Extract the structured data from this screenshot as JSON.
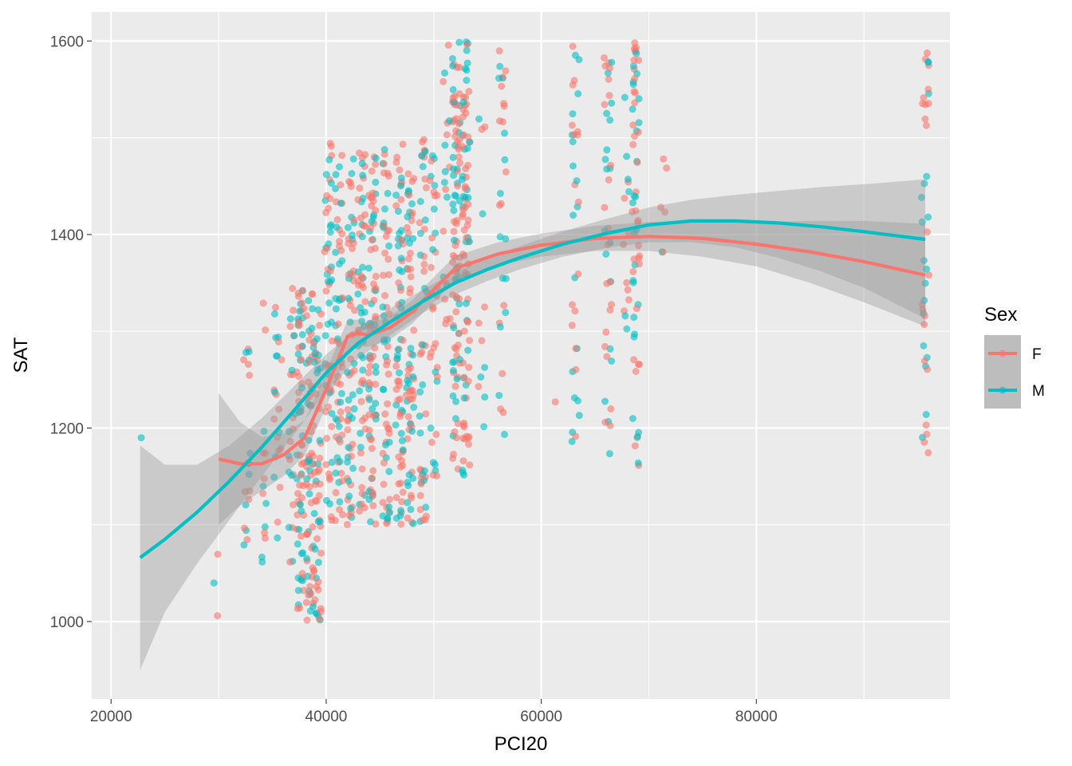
{
  "chart_data": {
    "type": "scatter",
    "title": "",
    "xlabel": "PCI20",
    "ylabel": "SAT",
    "xlim": [
      18200,
      98000
    ],
    "ylim": [
      920,
      1630
    ],
    "x_ticks": [
      20000,
      40000,
      60000,
      80000
    ],
    "y_ticks": [
      1000,
      1200,
      1400,
      1600
    ],
    "x_tick_labels": [
      "20000",
      "40000",
      "60000",
      "80000"
    ],
    "y_tick_labels": [
      "1000",
      "1200",
      "1400",
      "1600"
    ],
    "grid": true,
    "legend": {
      "title": "Sex",
      "position": "right",
      "entries": [
        "F",
        "M"
      ]
    },
    "colors": {
      "F": "#F8766D",
      "M": "#00BFC4",
      "panel": "#EBEBEB",
      "band": "#999999"
    },
    "point_clusters": [
      {
        "x": 22700,
        "n_F": 0,
        "n_M": 1,
        "ymin": 1190,
        "ymax": 1192
      },
      {
        "x": 29800,
        "n_F": 2,
        "n_M": 1,
        "ymin": 978,
        "ymax": 1070
      },
      {
        "x": 32600,
        "n_F": 10,
        "n_M": 8,
        "ymin": 1030,
        "ymax": 1315
      },
      {
        "x": 34200,
        "n_F": 8,
        "n_M": 6,
        "ymin": 1060,
        "ymax": 1345
      },
      {
        "x": 35500,
        "n_F": 12,
        "n_M": 10,
        "ymin": 1005,
        "ymax": 1340
      },
      {
        "x": 36800,
        "n_F": 14,
        "n_M": 10,
        "ymin": 1060,
        "ymax": 1345
      },
      {
        "x": 37600,
        "n_F": 40,
        "n_M": 28,
        "ymin": 1003,
        "ymax": 1345
      },
      {
        "x": 38500,
        "n_F": 40,
        "n_M": 28,
        "ymin": 1000,
        "ymax": 1345
      },
      {
        "x": 39200,
        "n_F": 30,
        "n_M": 22,
        "ymin": 1000,
        "ymax": 1330
      },
      {
        "x": 40200,
        "n_F": 30,
        "n_M": 26,
        "ymin": 1100,
        "ymax": 1495
      },
      {
        "x": 41200,
        "n_F": 32,
        "n_M": 26,
        "ymin": 1100,
        "ymax": 1495
      },
      {
        "x": 42300,
        "n_F": 34,
        "n_M": 26,
        "ymin": 1100,
        "ymax": 1495
      },
      {
        "x": 43300,
        "n_F": 34,
        "n_M": 26,
        "ymin": 1100,
        "ymax": 1495
      },
      {
        "x": 44300,
        "n_F": 50,
        "n_M": 30,
        "ymin": 1100,
        "ymax": 1495
      },
      {
        "x": 45600,
        "n_F": 36,
        "n_M": 26,
        "ymin": 1100,
        "ymax": 1495
      },
      {
        "x": 46800,
        "n_F": 40,
        "n_M": 30,
        "ymin": 1100,
        "ymax": 1495
      },
      {
        "x": 47800,
        "n_F": 40,
        "n_M": 28,
        "ymin": 1100,
        "ymax": 1495
      },
      {
        "x": 49000,
        "n_F": 28,
        "n_M": 20,
        "ymin": 1100,
        "ymax": 1500
      },
      {
        "x": 50000,
        "n_F": 22,
        "n_M": 14,
        "ymin": 1150,
        "ymax": 1500
      },
      {
        "x": 51200,
        "n_F": 12,
        "n_M": 8,
        "ymin": 1300,
        "ymax": 1600
      },
      {
        "x": 52100,
        "n_F": 60,
        "n_M": 36,
        "ymin": 1150,
        "ymax": 1600
      },
      {
        "x": 53000,
        "n_F": 55,
        "n_M": 32,
        "ymin": 1150,
        "ymax": 1600
      },
      {
        "x": 54500,
        "n_F": 6,
        "n_M": 6,
        "ymin": 1180,
        "ymax": 1525
      },
      {
        "x": 56400,
        "n_F": 16,
        "n_M": 14,
        "ymin": 1170,
        "ymax": 1590
      },
      {
        "x": 61200,
        "n_F": 1,
        "n_M": 0,
        "ymin": 1227,
        "ymax": 1227
      },
      {
        "x": 63200,
        "n_F": 16,
        "n_M": 18,
        "ymin": 1158,
        "ymax": 1600
      },
      {
        "x": 66200,
        "n_F": 22,
        "n_M": 18,
        "ymin": 1170,
        "ymax": 1592
      },
      {
        "x": 67800,
        "n_F": 8,
        "n_M": 6,
        "ymin": 1280,
        "ymax": 1598
      },
      {
        "x": 68800,
        "n_F": 36,
        "n_M": 26,
        "ymin": 1150,
        "ymax": 1600
      },
      {
        "x": 71400,
        "n_F": 5,
        "n_M": 1,
        "ymin": 1235,
        "ymax": 1525
      },
      {
        "x": 95700,
        "n_F": 22,
        "n_M": 18,
        "ymin": 1158,
        "ymax": 1597
      }
    ],
    "series": [
      {
        "name": "F",
        "smooth_x": [
          30000,
          32000,
          34000,
          36000,
          38000,
          40000,
          42000,
          43000,
          44000,
          46000,
          48000,
          50000,
          52000,
          56000,
          60000,
          65000,
          70000,
          75000,
          80000,
          85000,
          90000,
          95700
        ],
        "smooth_y": [
          1168,
          1163,
          1163,
          1172,
          1190,
          1240,
          1295,
          1298,
          1296,
          1304,
          1320,
          1343,
          1365,
          1380,
          1389,
          1396,
          1398,
          1396,
          1390,
          1382,
          1372,
          1358
        ],
        "band_lo": [
          1100,
          1120,
          1135,
          1150,
          1172,
          1222,
          1278,
          1284,
          1284,
          1292,
          1308,
          1330,
          1352,
          1368,
          1377,
          1383,
          1383,
          1377,
          1367,
          1350,
          1330,
          1305
        ],
        "band_hi": [
          1236,
          1206,
          1191,
          1194,
          1208,
          1258,
          1312,
          1312,
          1308,
          1316,
          1332,
          1356,
          1378,
          1392,
          1401,
          1409,
          1413,
          1415,
          1413,
          1414,
          1414,
          1411
        ]
      },
      {
        "name": "M",
        "smooth_x": [
          22700,
          25000,
          28000,
          31000,
          34000,
          37000,
          40000,
          43000,
          46000,
          49000,
          52000,
          55000,
          58000,
          62000,
          66000,
          70000,
          74000,
          78000,
          82000,
          86000,
          90000,
          95700
        ],
        "smooth_y": [
          1066,
          1085,
          1113,
          1145,
          1180,
          1218,
          1257,
          1288,
          1310,
          1331,
          1350,
          1364,
          1376,
          1390,
          1401,
          1410,
          1414,
          1414,
          1412,
          1408,
          1403,
          1395
        ],
        "band_lo": [
          950,
          1010,
          1060,
          1105,
          1150,
          1193,
          1238,
          1272,
          1296,
          1319,
          1338,
          1352,
          1364,
          1377,
          1386,
          1392,
          1392,
          1387,
          1376,
          1362,
          1345,
          1313
        ],
        "band_hi": [
          1182,
          1162,
          1162,
          1182,
          1210,
          1243,
          1276,
          1304,
          1324,
          1343,
          1362,
          1376,
          1388,
          1403,
          1416,
          1428,
          1436,
          1441,
          1445,
          1449,
          1452,
          1457
        ]
      }
    ]
  }
}
